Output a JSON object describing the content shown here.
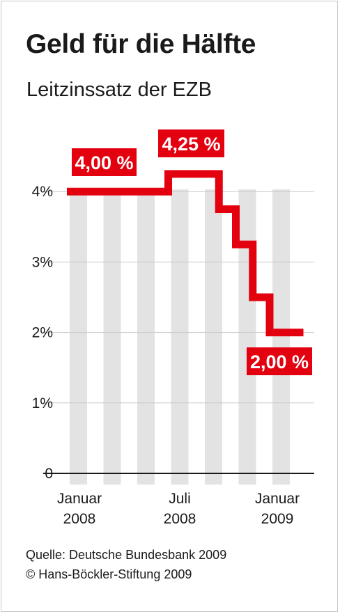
{
  "title": "Geld für die Hälfte",
  "subtitle": "Leitzinssatz der EZB",
  "source_line1": "Quelle: Deutsche Bundesbank 2009",
  "source_line2": "© Hans-Böckler-Stiftung 2009",
  "colors": {
    "line": "#e3000f",
    "bands": "#e3e3e3",
    "grid": "#c8c8c8",
    "axis": "#1a1a1a"
  },
  "chart_data": {
    "type": "line",
    "title": "Geld für die Hälfte",
    "subtitle": "Leitzinssatz der EZB",
    "xlabel": "",
    "ylabel": "",
    "x": [
      "2008-01",
      "2008-02",
      "2008-03",
      "2008-04",
      "2008-05",
      "2008-06",
      "2008-07",
      "2008-08",
      "2008-09",
      "2008-10",
      "2008-11",
      "2008-12",
      "2009-01",
      "2009-02"
    ],
    "series": [
      {
        "name": "",
        "values": [
          4.0,
          4.0,
          4.0,
          4.0,
          4.0,
          4.0,
          4.25,
          4.25,
          4.25,
          3.75,
          3.25,
          2.5,
          2.0,
          2.0
        ]
      }
    ],
    "ylim": [
      0,
      4.25
    ],
    "yticks": [
      {
        "value": 0,
        "label": "0"
      },
      {
        "value": 1,
        "label": "1%"
      },
      {
        "value": 2,
        "label": "2%"
      },
      {
        "value": 3,
        "label": "3%"
      },
      {
        "value": 4,
        "label": "4%"
      }
    ],
    "xticks": [
      {
        "month": "2008-01",
        "line1": "Januar",
        "line2": "2008"
      },
      {
        "month": "2008-07",
        "line1": "Juli",
        "line2": "2008"
      },
      {
        "month": "2009-01",
        "line1": "Januar",
        "line2": "2009"
      }
    ],
    "annotations": [
      {
        "text": "4,00 %",
        "month": "2008-01",
        "value": 4.0
      },
      {
        "text": "4,25 %",
        "month": "2008-07",
        "value": 4.25
      },
      {
        "text": "2,00 %",
        "month": "2009-01",
        "value": 2.0
      }
    ],
    "grid": true,
    "legend": "none",
    "step": true
  }
}
